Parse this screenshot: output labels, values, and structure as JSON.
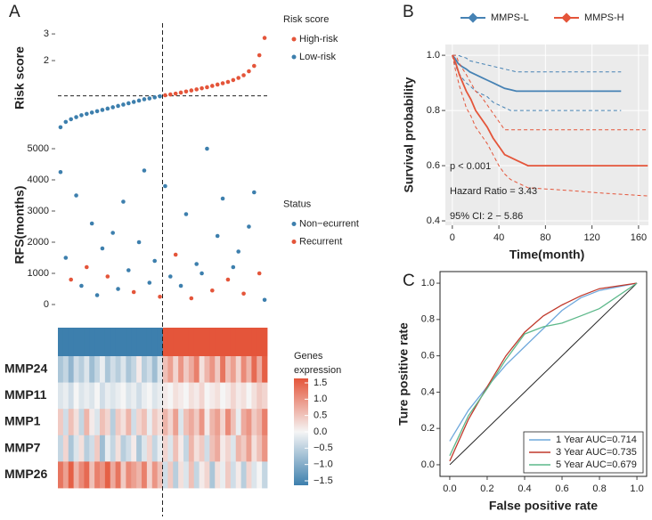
{
  "panel_labels": [
    "A",
    "B",
    "C"
  ],
  "chart_data": [
    {
      "type": "scatter",
      "y_label": "Risk score",
      "legend_title": "Risk score",
      "legend": "right-top",
      "xlim": [
        0.5,
        40.5
      ],
      "ylim": [
        -0.57,
        3.27
      ],
      "yticks": [
        2,
        3
      ],
      "cutoff": 0.68,
      "series": [
        {
          "name": "High-risk",
          "color": "#e4553a",
          "x": [
            21,
            22,
            23,
            24,
            25,
            26,
            27,
            28,
            29,
            30,
            31,
            32,
            33,
            34,
            35,
            36,
            37,
            38,
            39,
            40
          ],
          "values": [
            0.7,
            0.73,
            0.76,
            0.8,
            0.84,
            0.88,
            0.92,
            0.96,
            1.0,
            1.05,
            1.1,
            1.15,
            1.2,
            1.27,
            1.35,
            1.45,
            1.6,
            1.8,
            2.2,
            2.85
          ]
        },
        {
          "name": "Low-risk",
          "color": "#3d7fad",
          "x": [
            1,
            2,
            3,
            4,
            5,
            6,
            7,
            8,
            9,
            10,
            11,
            12,
            13,
            14,
            15,
            16,
            17,
            18,
            19,
            20
          ],
          "values": [
            -0.5,
            -0.3,
            -0.2,
            -0.12,
            -0.05,
            0.0,
            0.05,
            0.1,
            0.15,
            0.2,
            0.25,
            0.3,
            0.35,
            0.4,
            0.45,
            0.5,
            0.55,
            0.58,
            0.62,
            0.66
          ]
        }
      ]
    },
    {
      "type": "scatter",
      "y_label": "RFS(months)",
      "legend_title": "Status",
      "legend": "right-middle",
      "xlim": [
        0.5,
        40.5
      ],
      "ylim": [
        -86,
        5200
      ],
      "yticks": [
        0,
        1000,
        2000,
        3000,
        4000,
        5000
      ],
      "series": [
        {
          "name": "Non−ecurrent",
          "color": "#3d7fad",
          "x": [
            1,
            2,
            4,
            5,
            7,
            8,
            9,
            11,
            12,
            13,
            14,
            16,
            17,
            18,
            19,
            21,
            22,
            24,
            25,
            27,
            28,
            29,
            31,
            32,
            34,
            35,
            37,
            38,
            40
          ],
          "values": [
            4250,
            1500,
            3500,
            600,
            2600,
            300,
            1800,
            2300,
            500,
            3300,
            1100,
            2000,
            4300,
            700,
            1400,
            3800,
            900,
            600,
            2900,
            1300,
            1000,
            5000,
            2200,
            3400,
            1200,
            1700,
            2500,
            3600,
            150
          ]
        },
        {
          "name": "Recurrent",
          "color": "#e4553a",
          "x": [
            3,
            6,
            10,
            15,
            20,
            23,
            26,
            30,
            33,
            36,
            39
          ],
          "values": [
            800,
            1200,
            900,
            400,
            250,
            1600,
            200,
            450,
            800,
            350,
            1000
          ]
        }
      ]
    },
    {
      "type": "heatmap",
      "genes": [
        "MMP24",
        "MMP11",
        "MMP1",
        "MMP7",
        "MMP26"
      ],
      "colorbar_title": [
        "Genes",
        "expression"
      ],
      "clim": [
        -1.5,
        1.5
      ],
      "colors": [
        "#3d7fad",
        "#f5f5f5",
        "#e4553a"
      ],
      "cticks": [
        1.5,
        {
          "value": 1.0,
          "label": "1.0"
        },
        0.5,
        {
          "value": 0,
          "label": "0.0"
        },
        {
          "value": -0.5,
          "label": "−0.5"
        },
        {
          "value": -1.0,
          "label": "−1.0"
        },
        {
          "value": -1.5,
          "label": "−1.5"
        }
      ],
      "values": [
        [
          -0.6,
          -0.4,
          -0.8,
          -0.3,
          -0.5,
          -0.2,
          -0.7,
          -0.4,
          -0.1,
          -0.6,
          -0.3,
          -0.5,
          -0.2,
          -0.6,
          -0.4,
          0.1,
          -0.5,
          -0.3,
          -0.7,
          -0.2,
          0.5,
          0.8,
          0.3,
          0.9,
          0.4,
          0.7,
          1.1,
          0.2,
          0.6,
          0.9,
          0.4,
          1.2,
          0.5,
          0.8,
          0.3,
          1.0,
          0.6,
          1.3,
          0.7,
          1.4
        ],
        [
          -0.2,
          -0.1,
          -0.3,
          0.0,
          -0.2,
          -0.1,
          -0.2,
          0.0,
          -0.3,
          -0.1,
          -0.2,
          -0.1,
          0.0,
          -0.2,
          -0.1,
          -0.3,
          -0.1,
          0.0,
          -0.2,
          -0.1,
          0.1,
          0.0,
          0.2,
          0.1,
          0.0,
          0.2,
          0.1,
          0.3,
          0.0,
          0.1,
          0.2,
          0.0,
          0.1,
          0.3,
          0.1,
          0.2,
          0.0,
          0.2,
          0.4,
          0.3
        ],
        [
          0.4,
          -0.3,
          0.5,
          0.2,
          -0.4,
          0.6,
          0.1,
          -0.2,
          0.5,
          0.3,
          -0.5,
          0.4,
          0.2,
          0.6,
          -0.3,
          0.3,
          0.5,
          -0.1,
          0.4,
          0.2,
          0.6,
          0.3,
          0.8,
          -0.2,
          0.5,
          0.7,
          0.4,
          0.9,
          0.1,
          0.6,
          0.8,
          0.3,
          1.0,
          0.5,
          -0.1,
          0.7,
          0.9,
          0.4,
          0.6,
          1.1
        ],
        [
          -0.4,
          0.3,
          -0.6,
          -0.2,
          0.2,
          -0.5,
          -0.3,
          0.4,
          -0.7,
          -0.1,
          -0.4,
          0.2,
          -0.5,
          -0.3,
          0.1,
          -0.6,
          -0.2,
          0.3,
          -0.4,
          -0.1,
          0.3,
          -0.2,
          0.5,
          0.1,
          -0.4,
          0.6,
          0.2,
          0.4,
          -0.3,
          0.5,
          0.7,
          0.1,
          0.3,
          -0.2,
          0.6,
          0.4,
          0.8,
          0.2,
          0.5,
          0.9
        ],
        [
          1.2,
          0.8,
          1.4,
          0.6,
          1.0,
          1.3,
          0.5,
          1.1,
          0.9,
          1.4,
          0.7,
          1.2,
          0.4,
          1.0,
          0.8,
          0.6,
          1.1,
          0.3,
          0.9,
          0.5,
          -0.3,
          0.4,
          -0.5,
          0.2,
          -0.2,
          0.5,
          -0.4,
          0.1,
          0.3,
          -0.6,
          0.2,
          -0.1,
          0.4,
          -0.3,
          0.1,
          -0.5,
          0.3,
          -0.2,
          0.0,
          -0.4
        ]
      ]
    },
    {
      "type": "line",
      "x_label": "Time(month)",
      "y_label": "Survival probability",
      "legend": "top",
      "background": "#ebebeb",
      "grid": true,
      "xlim": [
        -6,
        168.5
      ],
      "ylim": [
        0.384,
        1.039
      ],
      "xticks": [
        0,
        40,
        80,
        120,
        160
      ],
      "yticks": [
        0.4,
        0.6,
        0.8,
        {
          "value": 1.0,
          "label": "1.0"
        }
      ],
      "annotations": [
        "p < 0.001",
        "Hazard Ratio = 3.43",
        "95% CI: 2 − 5.86"
      ],
      "series": [
        {
          "name": "MMPS-L",
          "color": "#4682b4",
          "x": [
            0,
            2,
            5,
            8,
            12,
            15,
            20,
            25,
            30,
            35,
            40,
            45,
            50,
            55,
            60,
            80,
            100,
            120,
            140,
            145
          ],
          "values": [
            1,
            0.99,
            0.97,
            0.96,
            0.95,
            0.94,
            0.93,
            0.92,
            0.91,
            0.9,
            0.89,
            0.88,
            0.875,
            0.87,
            0.87,
            0.87,
            0.87,
            0.87,
            0.87,
            0.87
          ],
          "upper": [
            1,
            1,
            1,
            0.995,
            0.99,
            0.98,
            0.975,
            0.97,
            0.965,
            0.96,
            0.955,
            0.95,
            0.945,
            0.94,
            0.94,
            0.94,
            0.94,
            0.94,
            0.94,
            0.94
          ],
          "lower": [
            1,
            0.97,
            0.94,
            0.92,
            0.9,
            0.89,
            0.87,
            0.86,
            0.85,
            0.83,
            0.82,
            0.81,
            0.8,
            0.8,
            0.8,
            0.8,
            0.8,
            0.8,
            0.8,
            0.8
          ]
        },
        {
          "name": "MMPS-H",
          "color": "#e4553a",
          "x": [
            0,
            3,
            6,
            9,
            12,
            16,
            20,
            25,
            30,
            35,
            40,
            45,
            50,
            55,
            65,
            100,
            130,
            168
          ],
          "values": [
            1,
            0.97,
            0.93,
            0.9,
            0.87,
            0.84,
            0.8,
            0.77,
            0.74,
            0.7,
            0.67,
            0.64,
            0.63,
            0.62,
            0.6,
            0.6,
            0.6,
            0.6
          ],
          "upper": [
            1,
            1,
            0.97,
            0.95,
            0.93,
            0.9,
            0.87,
            0.85,
            0.82,
            0.79,
            0.76,
            0.73,
            0.73,
            0.73,
            0.73,
            0.73,
            0.73,
            0.73
          ],
          "lower": [
            1,
            0.94,
            0.89,
            0.85,
            0.81,
            0.78,
            0.74,
            0.71,
            0.68,
            0.64,
            0.6,
            0.57,
            0.55,
            0.54,
            0.52,
            0.51,
            0.5,
            0.49
          ]
        }
      ]
    },
    {
      "type": "line",
      "x_label": "False positive rate",
      "y_label": "Ture positive rate",
      "legend": "bottom-right",
      "frame": true,
      "diagonal": true,
      "xlim": [
        -0.052,
        1.052
      ],
      "ylim": [
        -0.064,
        1.064
      ],
      "xticks": [
        {
          "value": 0,
          "label": "0.0"
        },
        0.2,
        0.4,
        0.6,
        0.8,
        {
          "value": 1.0,
          "label": "1.0"
        }
      ],
      "yticks": [
        {
          "value": 0,
          "label": "0.0"
        },
        0.2,
        0.4,
        0.6,
        0.8,
        {
          "value": 1.0,
          "label": "1.0"
        }
      ],
      "series": [
        {
          "name": "1 Year  AUC=0.714",
          "color": "#6fa8dc",
          "x": [
            0,
            0.1,
            0.2,
            0.3,
            0.4,
            0.5,
            0.6,
            0.7,
            0.8,
            1
          ],
          "values": [
            0.13,
            0.3,
            0.43,
            0.55,
            0.65,
            0.75,
            0.85,
            0.92,
            0.96,
            1
          ]
        },
        {
          "name": "3 Year  AUC=0.735",
          "color": "#c0392b",
          "x": [
            0,
            0.1,
            0.2,
            0.3,
            0.4,
            0.5,
            0.6,
            0.7,
            0.8,
            1
          ],
          "values": [
            0.02,
            0.25,
            0.43,
            0.6,
            0.73,
            0.82,
            0.88,
            0.93,
            0.97,
            1
          ]
        },
        {
          "name": "5 Year  AUC=0.679",
          "color": "#5cb88a",
          "x": [
            0,
            0.1,
            0.2,
            0.3,
            0.4,
            0.5,
            0.6,
            0.7,
            0.8,
            1
          ],
          "values": [
            0.05,
            0.27,
            0.42,
            0.58,
            0.72,
            0.76,
            0.78,
            0.82,
            0.86,
            1
          ]
        }
      ]
    }
  ]
}
